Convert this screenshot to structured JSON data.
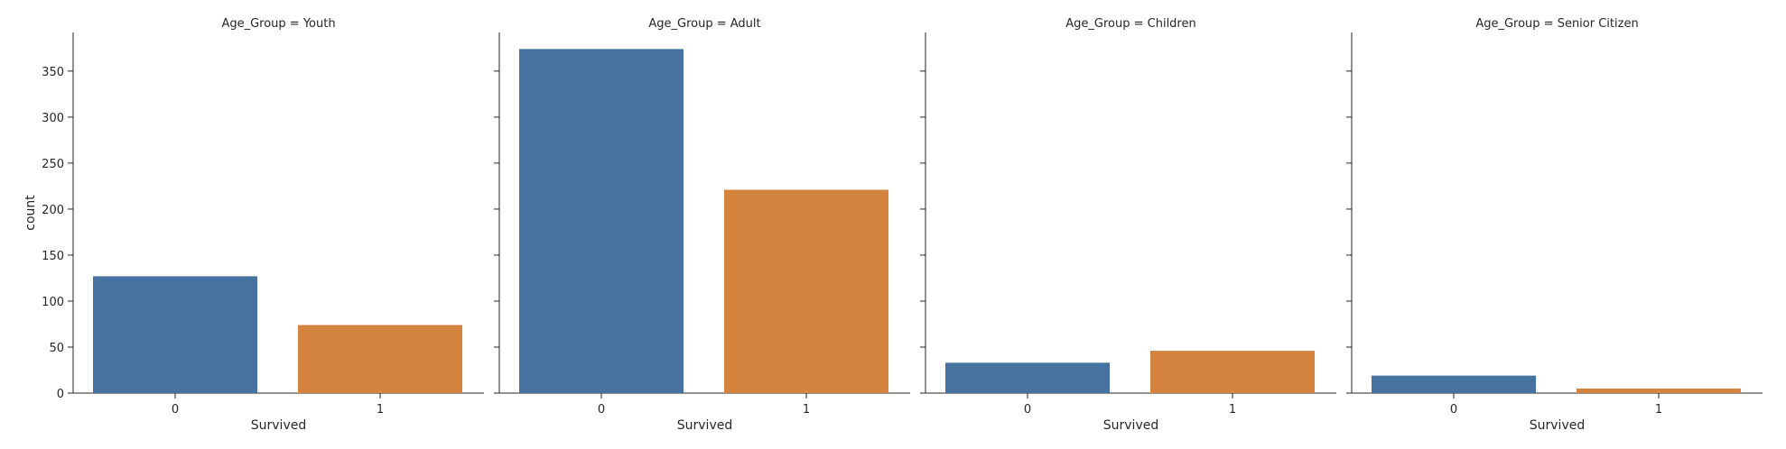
{
  "chart_data": {
    "type": "bar",
    "xlabel": "Survived",
    "ylabel": "count",
    "ylim": [
      0,
      392
    ],
    "yticks": [
      0,
      50,
      100,
      150,
      200,
      250,
      300,
      350
    ],
    "categories": [
      "0",
      "1"
    ],
    "colors": [
      "#4572a0",
      "#d5843f"
    ],
    "panels": [
      {
        "title": "Age_Group = Youth",
        "values": [
          127,
          74
        ]
      },
      {
        "title": "Age_Group = Adult",
        "values": [
          374,
          221
        ]
      },
      {
        "title": "Age_Group = Children",
        "values": [
          33,
          46
        ]
      },
      {
        "title": "Age_Group = Senior Citizen",
        "values": [
          19,
          5
        ]
      }
    ]
  }
}
